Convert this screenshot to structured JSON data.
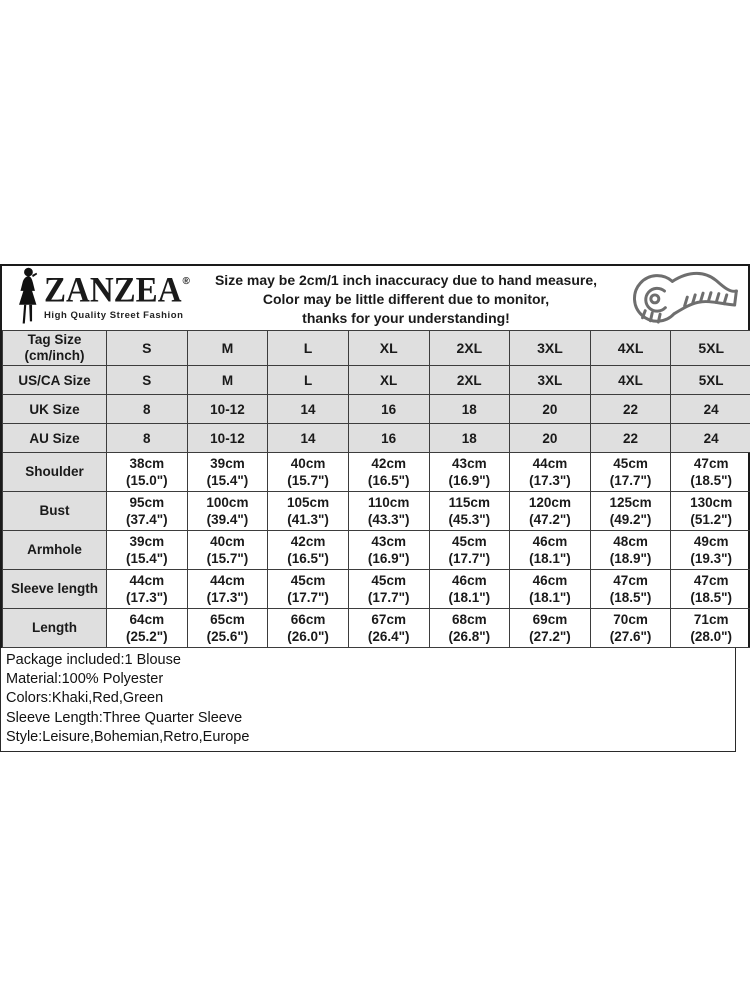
{
  "logo": {
    "brand": "ZANZEA",
    "registered": "®",
    "tagline": "High Quality Street Fashion"
  },
  "disclaimer": {
    "line1": "Size may be 2cm/1 inch inaccuracy due to hand measure,",
    "line2": "Color may be little different due to monitor,",
    "line3": "thanks for your understanding!"
  },
  "icons": {
    "woman_silhouette": "woman-silhouette-icon",
    "measuring_tape": "measuring-tape-icon"
  },
  "colors": {
    "shaded_cell_bg": "#dfdfdf",
    "table_border": "#3d3d3d",
    "outer_border": "#1a1a1a",
    "icon_gray": "#6e6e6e",
    "text": "#1a1a1a"
  },
  "table": {
    "rows": [
      {
        "label": "Tag Size\n(cm/inch)",
        "kind": "tagsize",
        "shaded": true,
        "cells": [
          "S",
          "M",
          "L",
          "XL",
          "2XL",
          "3XL",
          "4XL",
          "5XL"
        ]
      },
      {
        "label": "US/CA Size",
        "kind": "size",
        "shaded": true,
        "cells": [
          "S",
          "M",
          "L",
          "XL",
          "2XL",
          "3XL",
          "4XL",
          "5XL"
        ]
      },
      {
        "label": "UK Size",
        "kind": "size",
        "shaded": true,
        "cells": [
          "8",
          "10-12",
          "14",
          "16",
          "18",
          "20",
          "22",
          "24"
        ]
      },
      {
        "label": "AU Size",
        "kind": "size",
        "shaded": true,
        "cells": [
          "8",
          "10-12",
          "14",
          "16",
          "18",
          "20",
          "22",
          "24"
        ]
      },
      {
        "label": "Shoulder",
        "kind": "measure",
        "shaded": false,
        "cells": [
          "38cm\n(15.0\")",
          "39cm\n(15.4\")",
          "40cm\n(15.7\")",
          "42cm\n(16.5\")",
          "43cm\n(16.9\")",
          "44cm\n(17.3\")",
          "45cm\n(17.7\")",
          "47cm\n(18.5\")"
        ]
      },
      {
        "label": "Bust",
        "kind": "measure",
        "shaded": false,
        "cells": [
          "95cm\n(37.4\")",
          "100cm\n(39.4\")",
          "105cm\n(41.3\")",
          "110cm\n(43.3\")",
          "115cm\n(45.3\")",
          "120cm\n(47.2\")",
          "125cm\n(49.2\")",
          "130cm\n(51.2\")"
        ]
      },
      {
        "label": "Armhole",
        "kind": "measure",
        "shaded": false,
        "cells": [
          "39cm\n(15.4\")",
          "40cm\n(15.7\")",
          "42cm\n(16.5\")",
          "43cm\n(16.9\")",
          "45cm\n(17.7\")",
          "46cm\n(18.1\")",
          "48cm\n(18.9\")",
          "49cm\n(19.3\")"
        ]
      },
      {
        "label": "Sleeve length",
        "kind": "measure",
        "shaded": false,
        "cells": [
          "44cm\n(17.3\")",
          "44cm\n(17.3\")",
          "45cm\n(17.7\")",
          "45cm\n(17.7\")",
          "46cm\n(18.1\")",
          "46cm\n(18.1\")",
          "47cm\n(18.5\")",
          "47cm\n(18.5\")"
        ]
      },
      {
        "label": "Length",
        "kind": "measure",
        "shaded": false,
        "cells": [
          "64cm\n(25.2\")",
          "65cm\n(25.6\")",
          "66cm\n(26.0\")",
          "67cm\n(26.4\")",
          "68cm\n(26.8\")",
          "69cm\n(27.2\")",
          "70cm\n(27.6\")",
          "71cm\n(28.0\")"
        ]
      }
    ]
  },
  "notes": [
    "Package included:1 Blouse",
    "Material:100% Polyester",
    "Colors:Khaki,Red,Green",
    "Sleeve Length:Three Quarter Sleeve",
    "Style:Leisure,Bohemian,Retro,Europe"
  ]
}
